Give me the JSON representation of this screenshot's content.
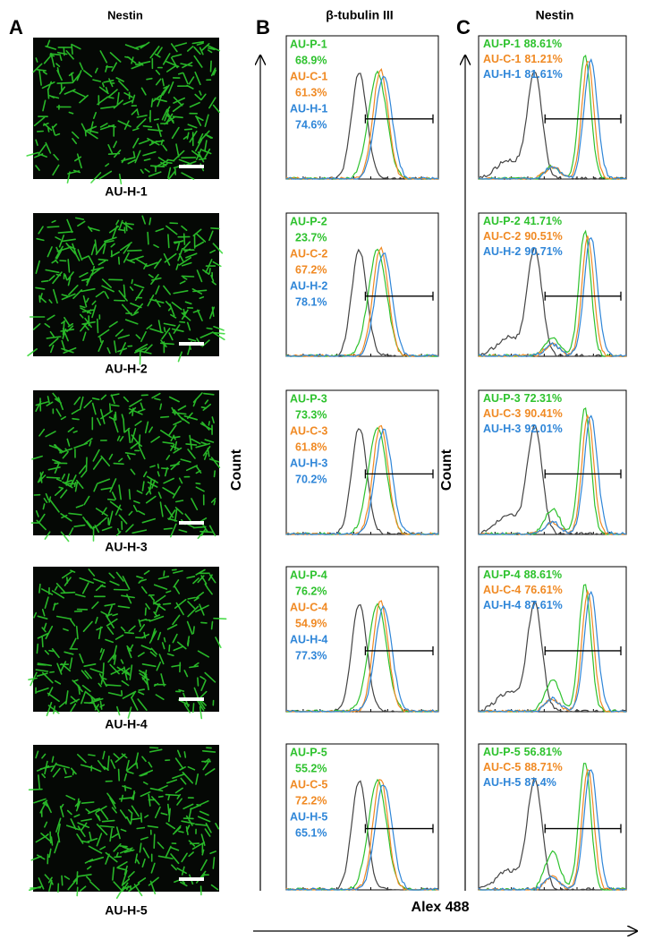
{
  "panel_a": {
    "letter": "A",
    "title": "Nestin",
    "images": [
      {
        "label": "AU-H-1"
      },
      {
        "label": "AU-H-2"
      },
      {
        "label": "AU-H-3"
      },
      {
        "label": "AU-H-4"
      },
      {
        "label": "AU-H-5"
      }
    ]
  },
  "panel_b": {
    "letter": "B",
    "title": "β-tubulin III",
    "y_label": "Count",
    "plots": [
      {
        "entries": [
          {
            "name": "AU-P-1",
            "value": "68.9%"
          },
          {
            "name": "AU-C-1",
            "value": "61.3%"
          },
          {
            "name": "AU-H-1",
            "value": "74.6%"
          }
        ]
      },
      {
        "entries": [
          {
            "name": "AU-P-2",
            "value": "23.7%"
          },
          {
            "name": "AU-C-2",
            "value": "67.2%"
          },
          {
            "name": "AU-H-2",
            "value": "78.1%"
          }
        ]
      },
      {
        "entries": [
          {
            "name": "AU-P-3",
            "value": "73.3%"
          },
          {
            "name": "AU-C-3",
            "value": "61.8%"
          },
          {
            "name": "AU-H-3",
            "value": "70.2%"
          }
        ]
      },
      {
        "entries": [
          {
            "name": "AU-P-4",
            "value": "76.2%"
          },
          {
            "name": "AU-C-4",
            "value": "54.9%"
          },
          {
            "name": "AU-H-4",
            "value": "77.3%"
          }
        ]
      },
      {
        "entries": [
          {
            "name": "AU-P-5",
            "value": "55.2%"
          },
          {
            "name": "AU-C-5",
            "value": "72.2%"
          },
          {
            "name": "AU-H-5",
            "value": "65.1%"
          }
        ]
      }
    ]
  },
  "panel_c": {
    "letter": "C",
    "title": "Nestin",
    "y_label": "Count",
    "plots": [
      {
        "entries": [
          {
            "name": "AU-P-1",
            "value": "88.61%"
          },
          {
            "name": "AU-C-1",
            "value": "81.21%"
          },
          {
            "name": "AU-H-1",
            "value": "81.61%"
          }
        ]
      },
      {
        "entries": [
          {
            "name": "AU-P-2",
            "value": "41.71%"
          },
          {
            "name": "AU-C-2",
            "value": "90.51%"
          },
          {
            "name": "AU-H-2",
            "value": "90.71%"
          }
        ]
      },
      {
        "entries": [
          {
            "name": "AU-P-3",
            "value": "72.31%"
          },
          {
            "name": "AU-C-3",
            "value": "90.41%"
          },
          {
            "name": "AU-H-3",
            "value": "92.01%"
          }
        ]
      },
      {
        "entries": [
          {
            "name": "AU-P-4",
            "value": "88.61%"
          },
          {
            "name": "AU-C-4",
            "value": "76.61%"
          },
          {
            "name": "AU-H-4",
            "value": "87.61%"
          }
        ]
      },
      {
        "entries": [
          {
            "name": "AU-P-5",
            "value": "56.81%"
          },
          {
            "name": "AU-C-5",
            "value": "88.71%"
          },
          {
            "name": "AU-H-5",
            "value": "87.4%"
          }
        ]
      }
    ]
  },
  "x_label": "Alex 488"
}
